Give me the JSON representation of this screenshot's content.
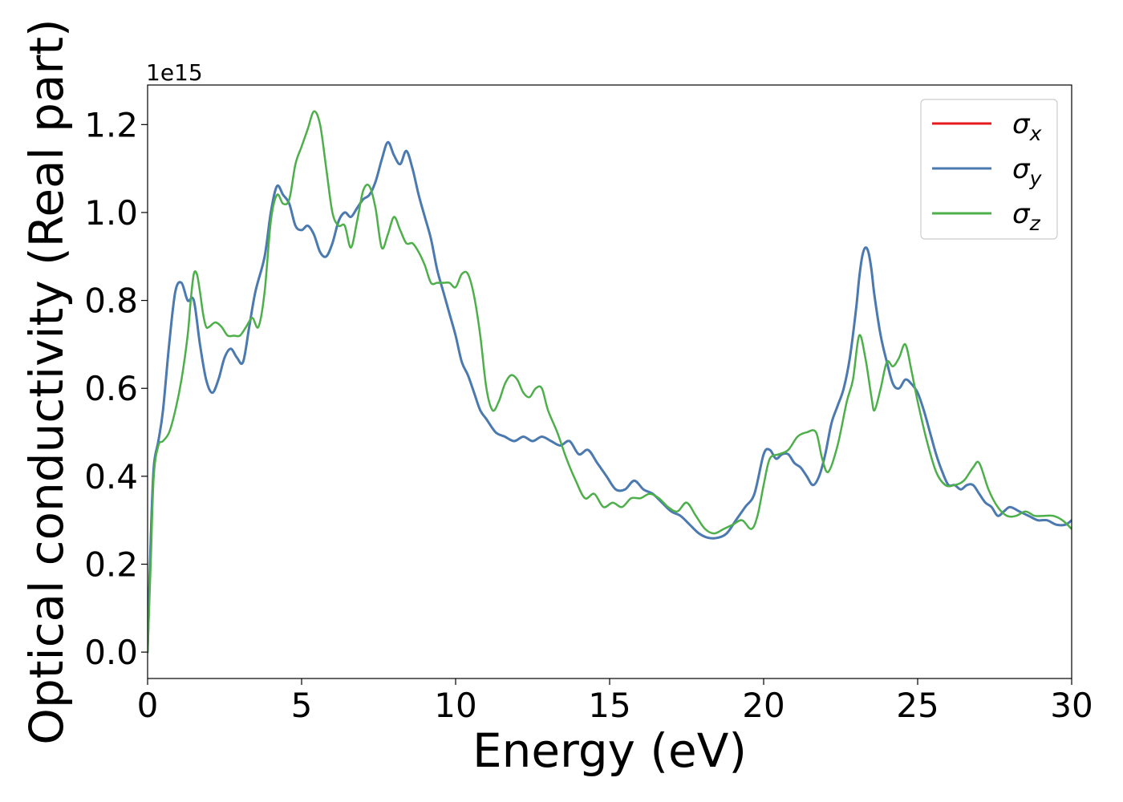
{
  "chart_data": {
    "type": "line",
    "xlabel": "Energy (eV)",
    "ylabel": "Optical conductivity (Real part)",
    "y_offset_text": "1e15",
    "xlim": [
      0,
      30
    ],
    "ylim": [
      -0.06,
      1.29
    ],
    "x_ticks": [
      0,
      5,
      10,
      15,
      20,
      25,
      30
    ],
    "y_ticks": [
      0.0,
      0.2,
      0.4,
      0.6,
      0.8,
      1.0,
      1.2
    ],
    "x_tick_labels": [
      "0",
      "5",
      "10",
      "15",
      "20",
      "25",
      "30"
    ],
    "y_tick_labels": [
      "0.0",
      "0.2",
      "0.4",
      "0.6",
      "0.8",
      "1.0",
      "1.2"
    ],
    "grid": false,
    "legend_position": "top-right",
    "series": [
      {
        "name": "σx",
        "legend_symbol": "σ",
        "legend_sub": "x",
        "color": "#e41a1c",
        "x": [
          0,
          0.1,
          0.2,
          0.35,
          0.5,
          0.7,
          0.9,
          1.1,
          1.3,
          1.5,
          1.7,
          1.9,
          2.1,
          2.3,
          2.5,
          2.7,
          2.9,
          3.1,
          3.3,
          3.5,
          3.8,
          4.0,
          4.2,
          4.4,
          4.6,
          4.8,
          5.0,
          5.2,
          5.4,
          5.6,
          5.8,
          6.0,
          6.2,
          6.4,
          6.6,
          6.8,
          7.0,
          7.2,
          7.4,
          7.6,
          7.8,
          8.0,
          8.2,
          8.4,
          8.6,
          8.8,
          9.0,
          9.2,
          9.4,
          9.6,
          9.8,
          10.0,
          10.2,
          10.4,
          10.6,
          10.8,
          11.0,
          11.3,
          11.6,
          11.9,
          12.2,
          12.5,
          12.8,
          13.1,
          13.4,
          13.7,
          14.0,
          14.3,
          14.6,
          14.9,
          15.2,
          15.5,
          15.8,
          16.1,
          16.4,
          16.7,
          17.0,
          17.3,
          17.6,
          17.9,
          18.2,
          18.5,
          18.8,
          19.1,
          19.4,
          19.7,
          20.0,
          20.2,
          20.4,
          20.6,
          20.8,
          21.0,
          21.2,
          21.4,
          21.6,
          21.8,
          22.0,
          22.2,
          22.4,
          22.6,
          22.8,
          23.0,
          23.1,
          23.2,
          23.3,
          23.4,
          23.5,
          23.6,
          23.8,
          24.0,
          24.2,
          24.4,
          24.6,
          24.8,
          25.0,
          25.2,
          25.4,
          25.6,
          25.8,
          26.0,
          26.2,
          26.4,
          26.6,
          26.8,
          27.0,
          27.2,
          27.4,
          27.6,
          27.8,
          28.0,
          28.3,
          28.6,
          28.9,
          29.2,
          29.5,
          29.8,
          30.0
        ],
        "y": [
          0.0,
          0.25,
          0.42,
          0.48,
          0.55,
          0.7,
          0.82,
          0.84,
          0.8,
          0.8,
          0.7,
          0.62,
          0.59,
          0.62,
          0.67,
          0.69,
          0.67,
          0.66,
          0.74,
          0.82,
          0.9,
          1.0,
          1.06,
          1.04,
          1.02,
          0.97,
          0.96,
          0.97,
          0.95,
          0.91,
          0.9,
          0.93,
          0.98,
          1.0,
          0.99,
          1.01,
          1.03,
          1.04,
          1.07,
          1.12,
          1.16,
          1.13,
          1.11,
          1.14,
          1.1,
          1.04,
          0.99,
          0.94,
          0.87,
          0.82,
          0.77,
          0.72,
          0.66,
          0.63,
          0.59,
          0.55,
          0.53,
          0.5,
          0.49,
          0.48,
          0.49,
          0.48,
          0.49,
          0.48,
          0.47,
          0.48,
          0.45,
          0.46,
          0.43,
          0.4,
          0.37,
          0.37,
          0.39,
          0.37,
          0.36,
          0.34,
          0.32,
          0.31,
          0.29,
          0.27,
          0.26,
          0.26,
          0.27,
          0.3,
          0.33,
          0.36,
          0.45,
          0.46,
          0.44,
          0.45,
          0.45,
          0.43,
          0.42,
          0.4,
          0.38,
          0.4,
          0.45,
          0.52,
          0.56,
          0.6,
          0.67,
          0.78,
          0.85,
          0.9,
          0.92,
          0.91,
          0.87,
          0.81,
          0.72,
          0.66,
          0.61,
          0.6,
          0.62,
          0.61,
          0.59,
          0.55,
          0.5,
          0.45,
          0.41,
          0.38,
          0.38,
          0.37,
          0.38,
          0.38,
          0.36,
          0.34,
          0.33,
          0.31,
          0.32,
          0.33,
          0.32,
          0.31,
          0.3,
          0.3,
          0.29,
          0.29,
          0.3
        ]
      },
      {
        "name": "σy",
        "legend_symbol": "σ",
        "legend_sub": "y",
        "color": "#4a7ab0",
        "x": [
          0,
          0.1,
          0.2,
          0.35,
          0.5,
          0.7,
          0.9,
          1.1,
          1.3,
          1.5,
          1.7,
          1.9,
          2.1,
          2.3,
          2.5,
          2.7,
          2.9,
          3.1,
          3.3,
          3.5,
          3.8,
          4.0,
          4.2,
          4.4,
          4.6,
          4.8,
          5.0,
          5.2,
          5.4,
          5.6,
          5.8,
          6.0,
          6.2,
          6.4,
          6.6,
          6.8,
          7.0,
          7.2,
          7.4,
          7.6,
          7.8,
          8.0,
          8.2,
          8.4,
          8.6,
          8.8,
          9.0,
          9.2,
          9.4,
          9.6,
          9.8,
          10.0,
          10.2,
          10.4,
          10.6,
          10.8,
          11.0,
          11.3,
          11.6,
          11.9,
          12.2,
          12.5,
          12.8,
          13.1,
          13.4,
          13.7,
          14.0,
          14.3,
          14.6,
          14.9,
          15.2,
          15.5,
          15.8,
          16.1,
          16.4,
          16.7,
          17.0,
          17.3,
          17.6,
          17.9,
          18.2,
          18.5,
          18.8,
          19.1,
          19.4,
          19.7,
          20.0,
          20.2,
          20.4,
          20.6,
          20.8,
          21.0,
          21.2,
          21.4,
          21.6,
          21.8,
          22.0,
          22.2,
          22.4,
          22.6,
          22.8,
          23.0,
          23.1,
          23.2,
          23.3,
          23.4,
          23.5,
          23.6,
          23.8,
          24.0,
          24.2,
          24.4,
          24.6,
          24.8,
          25.0,
          25.2,
          25.4,
          25.6,
          25.8,
          26.0,
          26.2,
          26.4,
          26.6,
          26.8,
          27.0,
          27.2,
          27.4,
          27.6,
          27.8,
          28.0,
          28.3,
          28.6,
          28.9,
          29.2,
          29.5,
          29.8,
          30.0
        ],
        "y": [
          0.0,
          0.25,
          0.42,
          0.48,
          0.55,
          0.7,
          0.82,
          0.84,
          0.8,
          0.8,
          0.7,
          0.62,
          0.59,
          0.62,
          0.67,
          0.69,
          0.67,
          0.66,
          0.74,
          0.82,
          0.9,
          1.0,
          1.06,
          1.04,
          1.02,
          0.97,
          0.96,
          0.97,
          0.95,
          0.91,
          0.9,
          0.93,
          0.98,
          1.0,
          0.99,
          1.01,
          1.03,
          1.04,
          1.07,
          1.12,
          1.16,
          1.13,
          1.11,
          1.14,
          1.1,
          1.04,
          0.99,
          0.94,
          0.87,
          0.82,
          0.77,
          0.72,
          0.66,
          0.63,
          0.59,
          0.55,
          0.53,
          0.5,
          0.49,
          0.48,
          0.49,
          0.48,
          0.49,
          0.48,
          0.47,
          0.48,
          0.45,
          0.46,
          0.43,
          0.4,
          0.37,
          0.37,
          0.39,
          0.37,
          0.36,
          0.34,
          0.32,
          0.31,
          0.29,
          0.27,
          0.26,
          0.26,
          0.27,
          0.3,
          0.33,
          0.36,
          0.45,
          0.46,
          0.44,
          0.45,
          0.45,
          0.43,
          0.42,
          0.4,
          0.38,
          0.4,
          0.45,
          0.52,
          0.56,
          0.6,
          0.67,
          0.78,
          0.85,
          0.9,
          0.92,
          0.91,
          0.87,
          0.81,
          0.72,
          0.66,
          0.61,
          0.6,
          0.62,
          0.61,
          0.59,
          0.55,
          0.5,
          0.45,
          0.41,
          0.38,
          0.38,
          0.37,
          0.38,
          0.38,
          0.36,
          0.34,
          0.33,
          0.31,
          0.32,
          0.33,
          0.32,
          0.31,
          0.3,
          0.3,
          0.29,
          0.29,
          0.3
        ]
      },
      {
        "name": "σz",
        "legend_symbol": "σ",
        "legend_sub": "z",
        "color": "#4daf4a",
        "x": [
          0,
          0.1,
          0.2,
          0.35,
          0.5,
          0.7,
          0.9,
          1.1,
          1.3,
          1.4,
          1.5,
          1.6,
          1.7,
          1.8,
          1.9,
          2.0,
          2.2,
          2.4,
          2.6,
          2.8,
          3.0,
          3.2,
          3.4,
          3.6,
          3.8,
          4.0,
          4.2,
          4.4,
          4.6,
          4.8,
          5.0,
          5.2,
          5.4,
          5.6,
          5.8,
          6.0,
          6.2,
          6.4,
          6.6,
          6.8,
          7.0,
          7.2,
          7.4,
          7.6,
          7.8,
          8.0,
          8.2,
          8.4,
          8.6,
          8.8,
          9.0,
          9.2,
          9.4,
          9.6,
          9.8,
          10.0,
          10.2,
          10.4,
          10.6,
          10.8,
          11.0,
          11.2,
          11.4,
          11.6,
          11.8,
          12.0,
          12.2,
          12.4,
          12.6,
          12.8,
          13.0,
          13.3,
          13.6,
          13.9,
          14.2,
          14.5,
          14.8,
          15.1,
          15.4,
          15.7,
          16.0,
          16.3,
          16.6,
          16.9,
          17.2,
          17.5,
          17.8,
          18.1,
          18.4,
          18.7,
          19.0,
          19.3,
          19.6,
          19.8,
          20.0,
          20.2,
          20.5,
          20.8,
          21.1,
          21.4,
          21.7,
          21.9,
          22.1,
          22.4,
          22.7,
          22.9,
          23.1,
          23.3,
          23.5,
          23.6,
          23.8,
          24.0,
          24.2,
          24.4,
          24.6,
          24.8,
          25.0,
          25.3,
          25.6,
          25.9,
          26.2,
          26.5,
          26.8,
          27.0,
          27.3,
          27.6,
          27.9,
          28.2,
          28.5,
          28.8,
          29.1,
          29.4,
          29.7,
          30.0
        ],
        "y": [
          0.0,
          0.2,
          0.4,
          0.47,
          0.48,
          0.5,
          0.55,
          0.62,
          0.72,
          0.8,
          0.86,
          0.86,
          0.82,
          0.77,
          0.74,
          0.74,
          0.75,
          0.74,
          0.72,
          0.72,
          0.72,
          0.74,
          0.76,
          0.74,
          0.82,
          0.98,
          1.04,
          1.02,
          1.03,
          1.11,
          1.15,
          1.19,
          1.23,
          1.2,
          1.1,
          1.0,
          0.97,
          0.97,
          0.92,
          0.98,
          1.05,
          1.06,
          1.01,
          0.92,
          0.95,
          0.99,
          0.96,
          0.93,
          0.93,
          0.91,
          0.88,
          0.84,
          0.84,
          0.84,
          0.84,
          0.83,
          0.86,
          0.86,
          0.81,
          0.72,
          0.6,
          0.55,
          0.57,
          0.61,
          0.63,
          0.62,
          0.59,
          0.58,
          0.6,
          0.6,
          0.55,
          0.5,
          0.44,
          0.39,
          0.35,
          0.36,
          0.33,
          0.34,
          0.33,
          0.35,
          0.35,
          0.36,
          0.35,
          0.33,
          0.32,
          0.34,
          0.31,
          0.28,
          0.27,
          0.28,
          0.29,
          0.3,
          0.28,
          0.31,
          0.38,
          0.44,
          0.45,
          0.46,
          0.49,
          0.5,
          0.5,
          0.44,
          0.41,
          0.47,
          0.57,
          0.62,
          0.72,
          0.67,
          0.58,
          0.55,
          0.6,
          0.66,
          0.65,
          0.67,
          0.7,
          0.64,
          0.57,
          0.48,
          0.41,
          0.38,
          0.38,
          0.39,
          0.42,
          0.43,
          0.37,
          0.33,
          0.31,
          0.31,
          0.32,
          0.31,
          0.31,
          0.31,
          0.3,
          0.28
        ]
      }
    ]
  }
}
